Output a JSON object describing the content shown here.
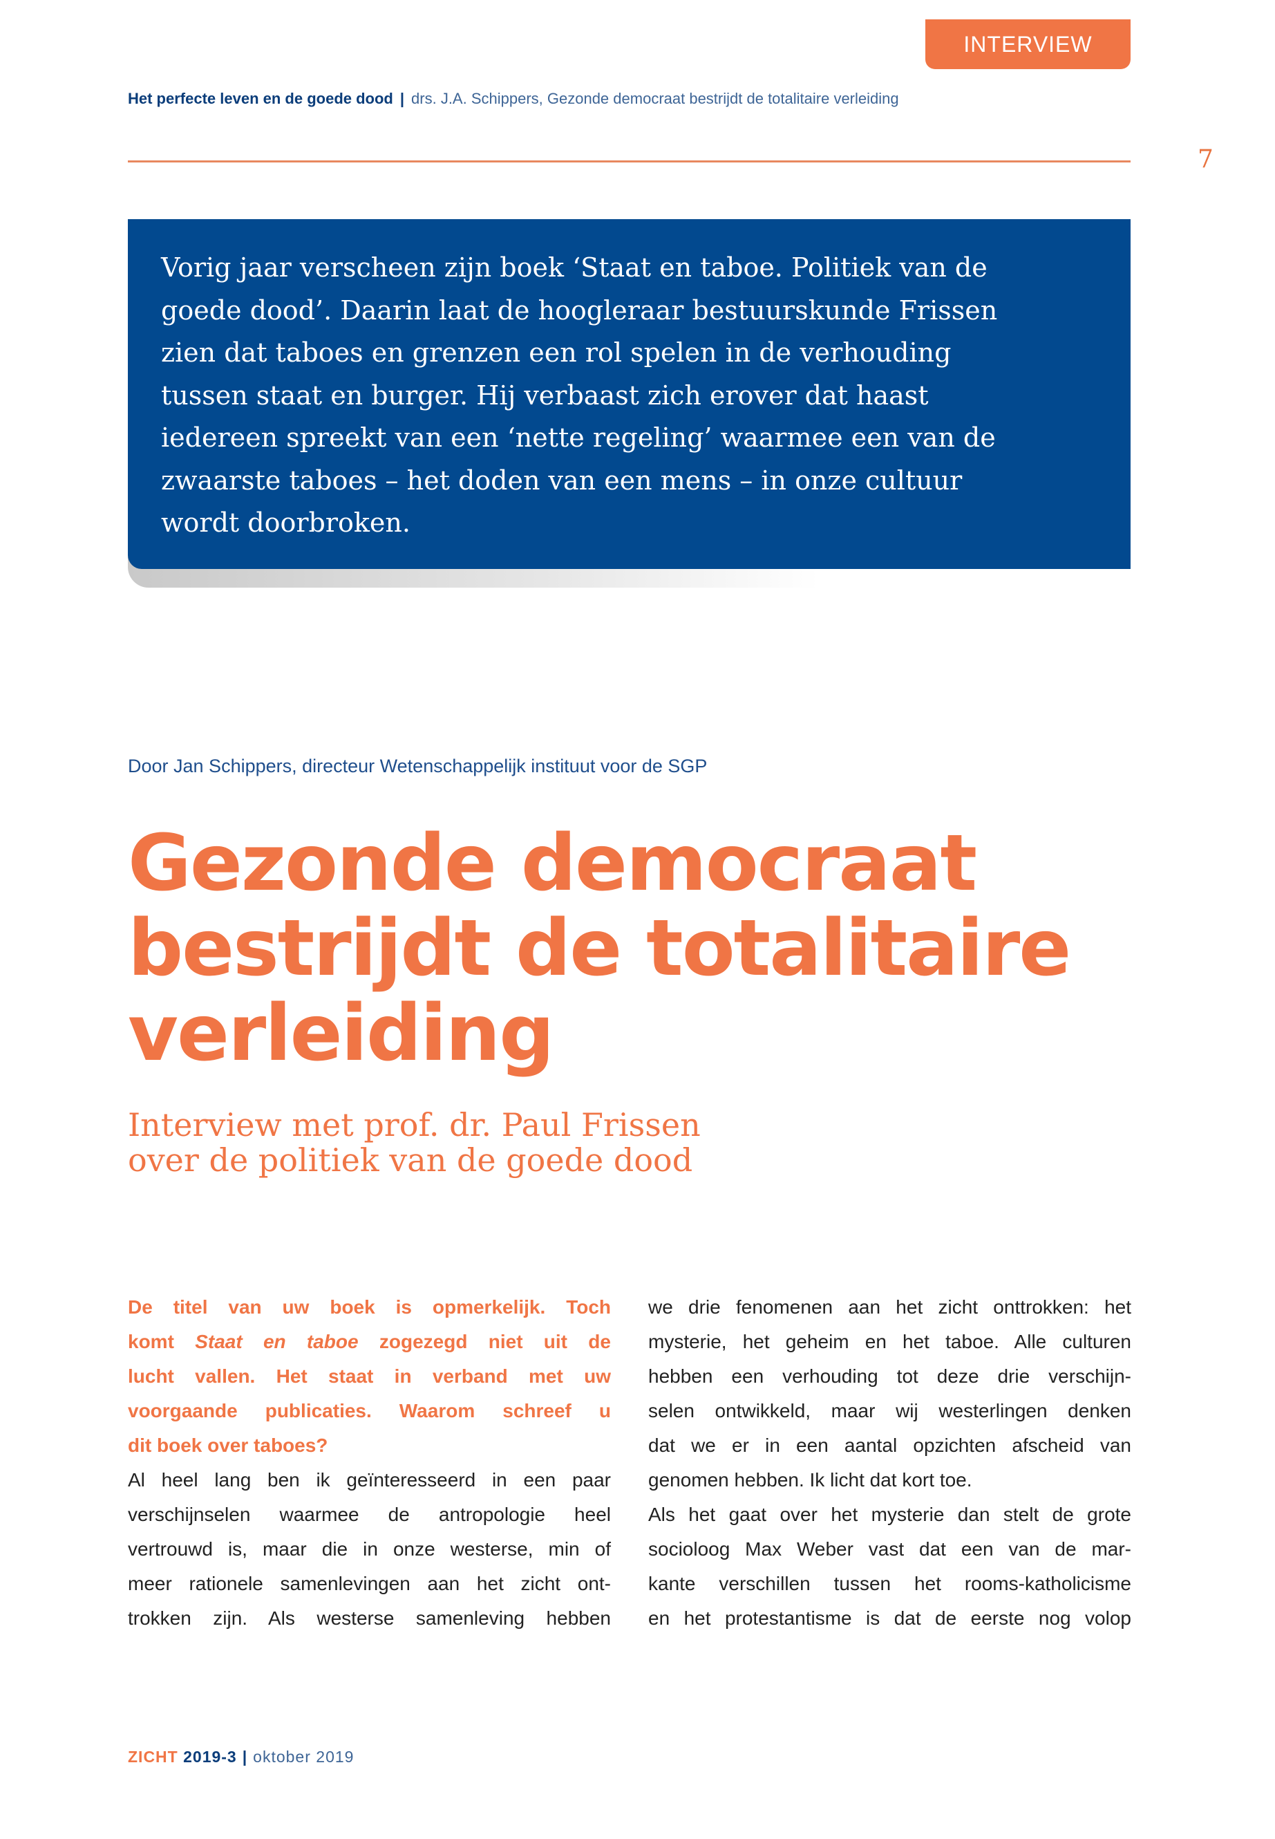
{
  "section_tab": "INTERVIEW",
  "running_head": {
    "series": "Het perfecte leven en de goede dood",
    "separator": "|",
    "article": "drs. J.A. Schippers, Gezonde democraat bestrijdt de totalitaire verleiding"
  },
  "page_number": "7",
  "intro_box": {
    "lines": [
      "Vorig jaar verscheen zijn boek ‘Staat en taboe. Politiek van de",
      "goede dood’. Daarin laat de hoogleraar bestuurskunde Frissen",
      "zien dat taboes en grenzen een rol spelen in de verhouding",
      "tussen staat en burger. Hij verbaast zich erover dat haast",
      "iedereen spreekt van een ‘nette regeling’ waarmee een van de",
      "zwaarste taboes – het doden van een mens – in onze cultuur",
      "wordt doorbroken."
    ]
  },
  "byline": "Door Jan Schippers, directeur Wetenschappelijk instituut voor de SGP",
  "title_lines": [
    "Gezonde democraat",
    "bestrijdt de totalitaire",
    "verleiding"
  ],
  "subtitle_lines": [
    "Interview met prof. dr. Paul Frissen",
    "over de politiek van de goede dood"
  ],
  "left_column": {
    "question_lines": [
      "De titel van uw boek is opmerkelijk. Toch",
      {
        "pre": "komt ",
        "italic": "Staat en taboe",
        "post": " zogezegd niet uit de"
      },
      "lucht vallen. Het staat in verband met uw",
      "voorgaande publicaties. Waarom schreef u",
      "dit boek over taboes?"
    ],
    "answer_lines": [
      "Al heel lang ben ik geïnteresseerd in een paar",
      "verschijnselen waarmee de antropologie heel",
      "vertrouwd is, maar die in onze westerse, min of",
      "meer rationele samenlevingen aan het zicht ont-",
      "trokken zijn. Als westerse samenleving hebben"
    ]
  },
  "right_column": {
    "lines": [
      "we drie fenomenen aan het zicht onttrokken: het",
      "mysterie, het geheim en het taboe. Alle culturen",
      "hebben een verhouding tot deze drie verschijn-",
      "selen ontwikkeld, maar wij westerlingen denken",
      "dat we er in een aantal opzichten afscheid van",
      "genomen hebben. Ik licht dat kort toe.",
      "Als het gaat over het mysterie dan stelt de grote",
      "socioloog Max Weber vast dat een van de mar-",
      "kante verschillen tussen het rooms-katholicisme",
      "en het protestantisme is dat de eerste nog volop"
    ]
  },
  "footer": {
    "magazine": "ZICHT",
    "issue": "2019-3",
    "separator": "|",
    "date": "oktober 2019"
  },
  "colors": {
    "accent_orange": "#f07545",
    "brand_blue": "#02498f"
  }
}
